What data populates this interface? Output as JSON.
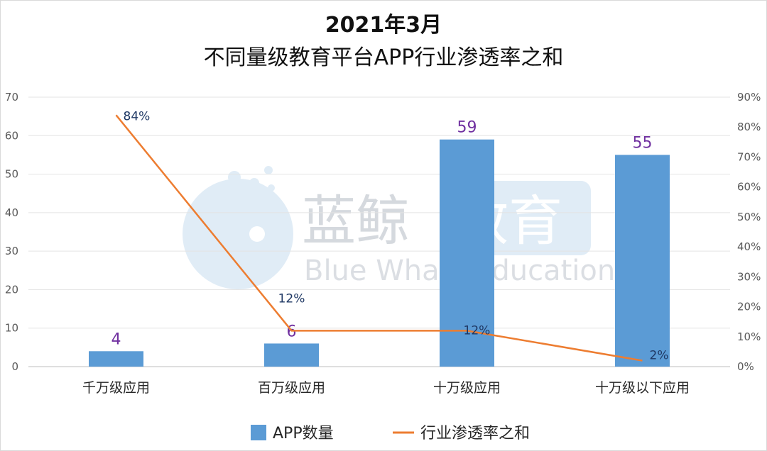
{
  "chart_data": {
    "type": "bar",
    "title": "2021年3月",
    "subtitle": "不同量级教育平台APP行业渗透率之和",
    "categories": [
      "千万级应用",
      "百万级应用",
      "十万级应用",
      "十万级以下应用"
    ],
    "series": [
      {
        "name": "APP数量",
        "type": "bar",
        "axis": "left",
        "color": "#5b9bd5",
        "values": [
          4,
          6,
          59,
          55
        ],
        "labels": [
          "4",
          "6",
          "59",
          "55"
        ]
      },
      {
        "name": "行业渗透率之和",
        "type": "line",
        "axis": "right",
        "color": "#ed7d31",
        "values": [
          84,
          12,
          12,
          2
        ],
        "labels": [
          "84%",
          "12%",
          "12%",
          "2%"
        ]
      }
    ],
    "y_left": {
      "min": 0,
      "max": 70,
      "step": 10,
      "ticks": [
        "0",
        "10",
        "20",
        "30",
        "40",
        "50",
        "60",
        "70"
      ]
    },
    "y_right": {
      "min": 0,
      "max": 90,
      "step": 10,
      "ticks": [
        "0%",
        "10%",
        "20%",
        "30%",
        "40%",
        "50%",
        "60%",
        "70%",
        "80%",
        "90%"
      ]
    },
    "grid": true,
    "legend": "bottom"
  },
  "watermark": {
    "text_cn_a": "蓝鲸",
    "text_cn_b": "教育",
    "text_en": "Blue Whale Education"
  }
}
